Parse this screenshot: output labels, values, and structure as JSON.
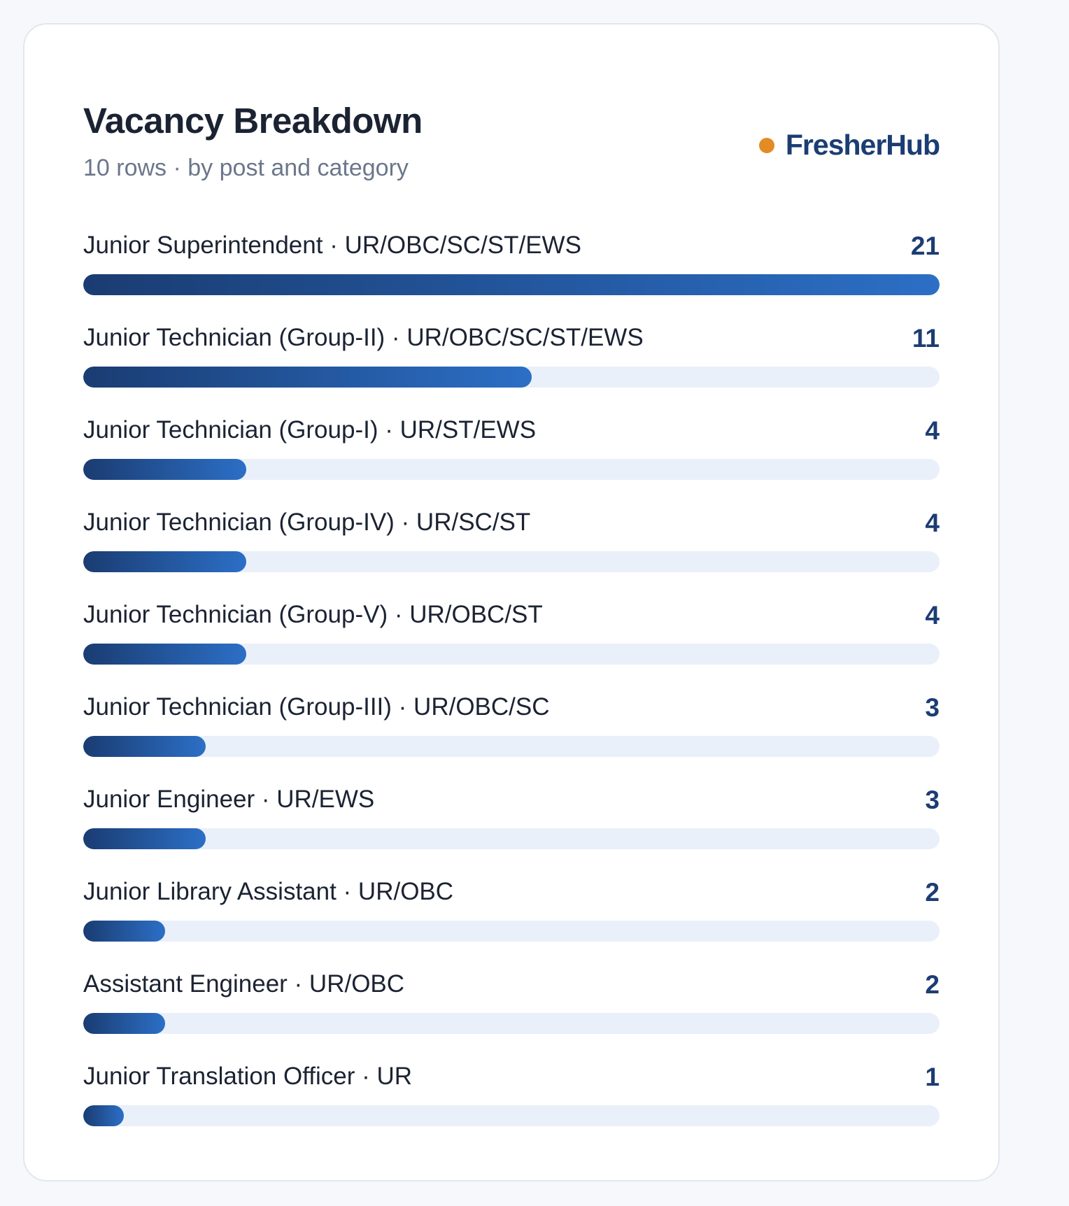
{
  "header": {
    "title": "Vacancy Breakdown",
    "subtitle": "10 rows · by post and category",
    "brand": "FresherHub"
  },
  "colors": {
    "accent_dot": "#e38b24",
    "brand_text": "#1c3d73",
    "bar_start": "#1a3c72",
    "bar_end": "#2c6fc6",
    "track": "#eaf0f9"
  },
  "chart_data": {
    "type": "bar",
    "orientation": "horizontal",
    "xlim": [
      0,
      21
    ],
    "categories": [
      "Junior Superintendent · UR/OBC/SC/ST/EWS",
      "Junior Technician (Group-II) · UR/OBC/SC/ST/EWS",
      "Junior Technician (Group-I) · UR/ST/EWS",
      "Junior Technician (Group-IV) · UR/SC/ST",
      "Junior Technician (Group-V) · UR/OBC/ST",
      "Junior Technician (Group-III) · UR/OBC/SC",
      "Junior Engineer · UR/EWS",
      "Junior Library Assistant · UR/OBC",
      "Assistant Engineer · UR/OBC",
      "Junior Translation Officer · UR"
    ],
    "values": [
      21,
      11,
      4,
      4,
      4,
      3,
      3,
      2,
      2,
      1
    ]
  }
}
